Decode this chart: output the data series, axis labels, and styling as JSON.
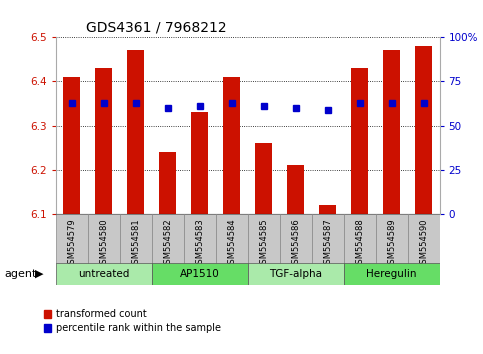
{
  "title": "GDS4361 / 7968212",
  "samples": [
    "GSM554579",
    "GSM554580",
    "GSM554581",
    "GSM554582",
    "GSM554583",
    "GSM554584",
    "GSM554585",
    "GSM554586",
    "GSM554587",
    "GSM554588",
    "GSM554589",
    "GSM554590"
  ],
  "red_values": [
    6.41,
    6.43,
    6.47,
    6.24,
    6.33,
    6.41,
    6.26,
    6.21,
    6.12,
    6.43,
    6.47,
    6.48
  ],
  "blue_values": [
    63,
    63,
    63,
    60,
    61,
    63,
    61,
    60,
    59,
    63,
    63,
    63
  ],
  "ylim_left": [
    6.1,
    6.5
  ],
  "ylim_right": [
    0,
    100
  ],
  "yticks_left": [
    6.1,
    6.2,
    6.3,
    6.4,
    6.5
  ],
  "yticks_right": [
    0,
    25,
    50,
    75,
    100
  ],
  "ytick_labels_right": [
    "0",
    "25",
    "50",
    "75",
    "100%"
  ],
  "baseline": 6.1,
  "groups": [
    {
      "label": "untreated",
      "start": 0,
      "end": 3
    },
    {
      "label": "AP1510",
      "start": 3,
      "end": 6
    },
    {
      "label": "TGF-alpha",
      "start": 6,
      "end": 9
    },
    {
      "label": "Heregulin",
      "start": 9,
      "end": 12
    }
  ],
  "group_colors": [
    "#aaeaaa",
    "#66dd66",
    "#aaeaaa",
    "#66dd66"
  ],
  "bar_color": "#cc1100",
  "dot_color": "#0000cc",
  "grid_color": "#000000",
  "bg_plot": "#ffffff",
  "bg_xticklabel": "#c8c8c8",
  "legend_red": "transformed count",
  "legend_blue": "percentile rank within the sample",
  "bar_width": 0.55,
  "agent_label": "agent"
}
